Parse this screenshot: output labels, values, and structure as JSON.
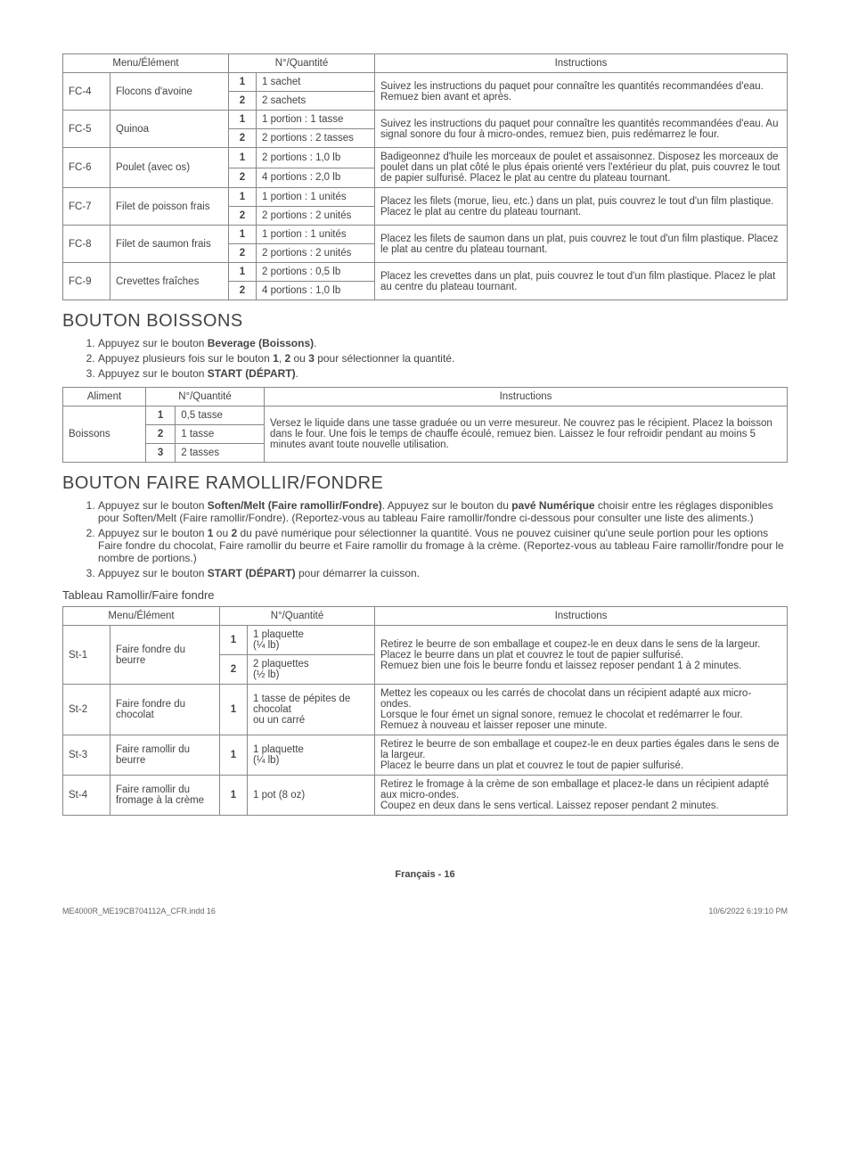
{
  "table1": {
    "headers": {
      "menu": "Menu/Élément",
      "qty": "N°/Quantité",
      "instr": "Instructions"
    },
    "rows": [
      {
        "code": "FC-4",
        "name": "Flocons d'avoine",
        "q": [
          [
            "1",
            "1 sachet"
          ],
          [
            "2",
            "2 sachets"
          ]
        ],
        "instr": "Suivez les instructions du paquet pour connaître les quantités recommandées d'eau. Remuez bien avant et après."
      },
      {
        "code": "FC-5",
        "name": "Quinoa",
        "q": [
          [
            "1",
            "1 portion : 1 tasse"
          ],
          [
            "2",
            "2 portions : 2 tasses"
          ]
        ],
        "instr": "Suivez les instructions du paquet pour connaître les quantités recommandées d'eau. Au signal sonore du four à micro-ondes, remuez bien, puis redémarrez le four."
      },
      {
        "code": "FC-6",
        "name": "Poulet (avec os)",
        "q": [
          [
            "1",
            "2 portions : 1,0 lb"
          ],
          [
            "2",
            "4 portions : 2,0 lb"
          ]
        ],
        "instr": "Badigeonnez d'huile les morceaux de poulet et assaisonnez. Disposez les morceaux de poulet dans un plat côté le plus épais orienté vers l'extérieur du plat, puis couvrez le tout de papier sulfurisé. Placez le plat au centre du plateau tournant."
      },
      {
        "code": "FC-7",
        "name": "Filet de poisson frais",
        "q": [
          [
            "1",
            "1 portion : 1 unités"
          ],
          [
            "2",
            "2 portions : 2 unités"
          ]
        ],
        "instr": "Placez les filets (morue, lieu, etc.) dans un plat, puis couvrez le tout d'un film plastique. Placez le plat au centre du plateau tournant."
      },
      {
        "code": "FC-8",
        "name": "Filet de saumon frais",
        "q": [
          [
            "1",
            "1 portion : 1 unités"
          ],
          [
            "2",
            "2 portions : 2 unités"
          ]
        ],
        "instr": "Placez les filets de saumon dans un plat, puis couvrez le tout d'un film plastique. Placez le plat au centre du plateau tournant."
      },
      {
        "code": "FC-9",
        "name": "Crevettes fraîches",
        "q": [
          [
            "1",
            "2 portions : 0,5 lb"
          ],
          [
            "2",
            "4 portions : 1,0 lb"
          ]
        ],
        "instr": "Placez les crevettes dans un plat, puis couvrez le tout d'un film plastique. Placez le plat au centre du plateau tournant."
      }
    ]
  },
  "section_boissons": {
    "title": "BOUTON BOISSONS",
    "steps_html": [
      "Appuyez sur le bouton <b>Beverage (Boissons)</b>.",
      "Appuyez plusieurs fois sur le bouton <b>1</b>, <b>2</b> ou <b>3</b> pour sélectionner la quantité.",
      "Appuyez sur le bouton <b>START (DÉPART)</b>."
    ]
  },
  "table2": {
    "headers": {
      "aliment": "Aliment",
      "qty": "N°/Quantité",
      "instr": "Instructions"
    },
    "row": {
      "name": "Boissons",
      "q": [
        [
          "1",
          "0,5 tasse"
        ],
        [
          "2",
          "1 tasse"
        ],
        [
          "3",
          "2 tasses"
        ]
      ],
      "instr": "Versez le liquide dans une tasse graduée ou un verre mesureur. Ne couvrez pas le récipient. Placez la boisson dans le four. Une fois le temps de chauffe écoulé, remuez bien. Laissez le four refroidir pendant au moins 5 minutes avant toute nouvelle utilisation."
    }
  },
  "section_soften": {
    "title": "BOUTON FAIRE RAMOLLIR/FONDRE",
    "steps_html": [
      "Appuyez sur le bouton <b>Soften/Melt (Faire ramollir/Fondre)</b>. Appuyez sur le bouton du <b>pavé Numérique</b> choisir entre les réglages disponibles pour Soften/Melt (Faire ramollir/Fondre). (Reportez-vous au tableau Faire ramollir/fondre ci-dessous pour consulter une liste des aliments.)",
      "Appuyez sur le bouton <b>1</b> ou <b>2</b> du pavé numérique pour sélectionner la quantité. Vous ne pouvez cuisiner qu'une seule portion pour les options Faire fondre du chocolat, Faire ramollir du beurre et Faire ramollir du fromage à la crème. (Reportez-vous au tableau Faire ramollir/fondre pour le nombre de portions.)",
      "Appuyez sur le bouton <b>START (DÉPART)</b> pour démarrer la cuisson."
    ],
    "subhead": "Tableau Ramollir/Faire fondre"
  },
  "table3": {
    "headers": {
      "menu": "Menu/Élément",
      "qty": "N°/Quantité",
      "instr": "Instructions"
    },
    "rows": [
      {
        "code": "St-1",
        "name": "Faire fondre du beurre",
        "q": [
          [
            "1",
            "1 plaquette\n(¼ lb)"
          ],
          [
            "2",
            "2 plaquettes\n(½ lb)"
          ]
        ],
        "instr": "Retirez le beurre de son emballage et coupez-le en deux dans le sens de la largeur. Placez le beurre dans un plat et couvrez le tout de papier sulfurisé.\nRemuez bien une fois le beurre fondu et laissez reposer pendant 1 à 2 minutes."
      },
      {
        "code": "St-2",
        "name": "Faire fondre du chocolat",
        "q": [
          [
            "1",
            "1 tasse de pépites de chocolat\nou un carré"
          ]
        ],
        "instr": "Mettez les copeaux ou les carrés de chocolat dans un récipient adapté aux micro-ondes.\nLorsque le four émet un signal sonore, remuez le chocolat et redémarrer le four. Remuez à nouveau et laisser reposer une minute."
      },
      {
        "code": "St-3",
        "name": "Faire ramollir du beurre",
        "q": [
          [
            "1",
            "1 plaquette\n(¼ lb)"
          ]
        ],
        "instr": "Retirez le beurre de son emballage et coupez-le en deux parties égales dans le sens de la largeur.\nPlacez le beurre dans un plat et couvrez le tout de papier sulfurisé."
      },
      {
        "code": "St-4",
        "name": "Faire ramollir du fromage à la crème",
        "q": [
          [
            "1",
            "1 pot (8 oz)"
          ]
        ],
        "instr": "Retirez le fromage à la crème de son emballage et placez-le dans un récipient adapté aux micro-ondes.\nCoupez en deux dans le sens vertical. Laissez reposer pendant 2 minutes."
      }
    ]
  },
  "footer": {
    "center_html": "<b>Français - 16</b>",
    "left": "ME4000R_ME19CB704112A_CFR.indd   16",
    "right": "10/6/2022   6:19:10 PM"
  }
}
